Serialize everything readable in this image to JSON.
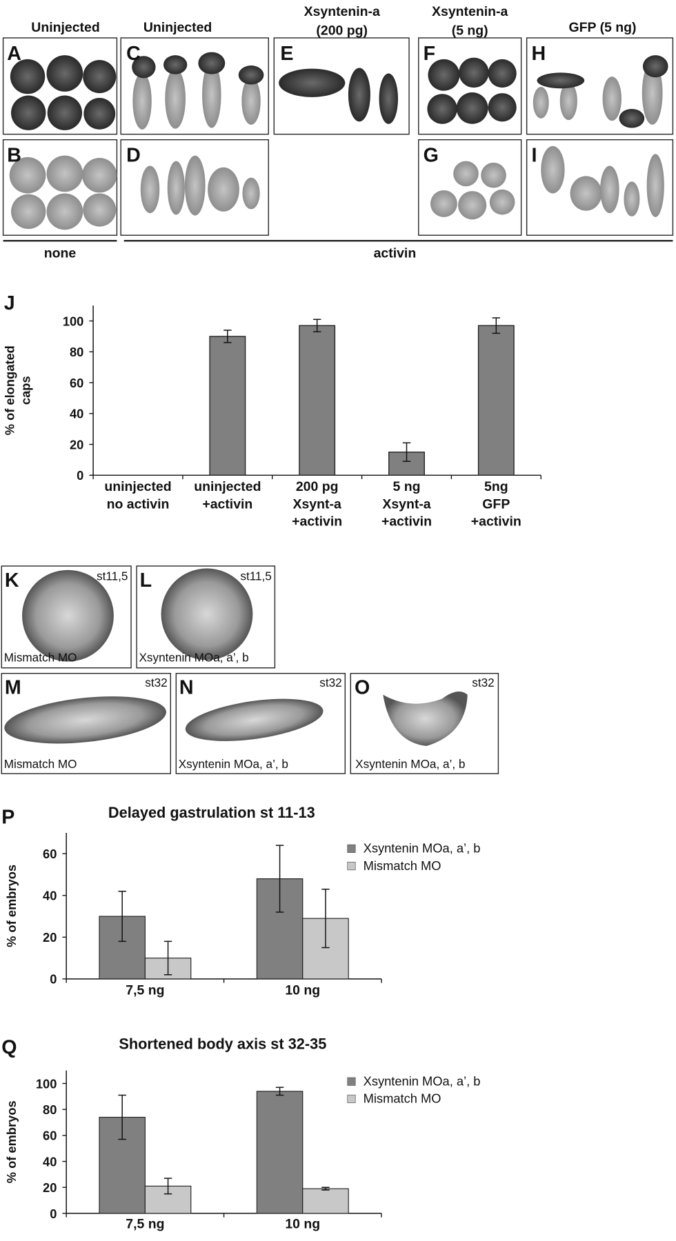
{
  "figure": {
    "headers": [
      [
        "Uninjected"
      ],
      [
        "Uninjected"
      ],
      [
        "Xsyntenin-a",
        "(200 pg)"
      ],
      [
        "Xsyntenin-a",
        "(5 ng)"
      ],
      [
        "GFP (5 ng)"
      ]
    ],
    "groups": [
      "none",
      "activin"
    ],
    "panels": [
      {
        "label": "A"
      },
      {
        "label": "B"
      },
      {
        "label": "C"
      },
      {
        "label": "D"
      },
      {
        "label": "E"
      },
      {
        "label": "F"
      },
      {
        "label": "G"
      },
      {
        "label": "H"
      },
      {
        "label": "I"
      },
      {
        "label": "K",
        "stage": "st11,5",
        "caption": "Mismatch MO"
      },
      {
        "label": "L",
        "stage": "st11,5",
        "caption": "Xsyntenin MOa, a’, b"
      },
      {
        "label": "M",
        "stage": "st32",
        "caption": "Mismatch MO"
      },
      {
        "label": "N",
        "stage": "st32",
        "caption": "Xsyntenin MOa, a’, b"
      },
      {
        "label": "O",
        "stage": "st32",
        "caption": "Xsyntenin MOa, a’, b"
      }
    ]
  },
  "chart_data": [
    {
      "type": "bar",
      "panel_label": "J",
      "ylabel": [
        "% of elongated",
        "caps"
      ],
      "categories": [
        [
          "uninjected",
          "no activin"
        ],
        [
          "uninjected",
          "+activin"
        ],
        [
          "200 pg",
          "Xsynt-a",
          "+activin"
        ],
        [
          "5 ng",
          "Xsynt-a",
          "+activin"
        ],
        [
          "5ng",
          "GFP",
          "+activin"
        ]
      ],
      "values": [
        0,
        90,
        97,
        15,
        97
      ],
      "errors": [
        null,
        4,
        4,
        6,
        5
      ],
      "color": "#808080",
      "ylim": [
        0,
        110
      ],
      "yticks": [
        0,
        20,
        40,
        60,
        80,
        100
      ]
    },
    {
      "type": "bar",
      "panel_label": "P",
      "title": "Delayed gastrulation st 11-13",
      "ylabel": [
        "% of embryos"
      ],
      "categories": [
        [
          "7,5 ng"
        ],
        [
          "10 ng"
        ]
      ],
      "series": [
        {
          "name": "Xsyntenin MOa, a’, b",
          "color": "#808080",
          "values": [
            30,
            48
          ],
          "errors": [
            12,
            16
          ]
        },
        {
          "name": "Mismatch MO",
          "color": "#c8c8c8",
          "values": [
            10,
            29
          ],
          "errors": [
            8,
            14
          ]
        }
      ],
      "ylim": [
        0,
        70
      ],
      "yticks": [
        0,
        20,
        40,
        60
      ]
    },
    {
      "type": "bar",
      "panel_label": "Q",
      "title": "Shortened body axis st 32-35",
      "ylabel": [
        "% of embryos"
      ],
      "categories": [
        [
          "7,5 ng"
        ],
        [
          "10 ng"
        ]
      ],
      "series": [
        {
          "name": "Xsyntenin MOa, a’, b",
          "color": "#808080",
          "values": [
            74,
            94
          ],
          "errors": [
            17,
            3
          ]
        },
        {
          "name": "Mismatch MO",
          "color": "#c8c8c8",
          "values": [
            21,
            19
          ],
          "errors": [
            6,
            1
          ]
        }
      ],
      "ylim": [
        0,
        110
      ],
      "yticks": [
        0,
        20,
        40,
        60,
        80,
        100
      ]
    }
  ]
}
